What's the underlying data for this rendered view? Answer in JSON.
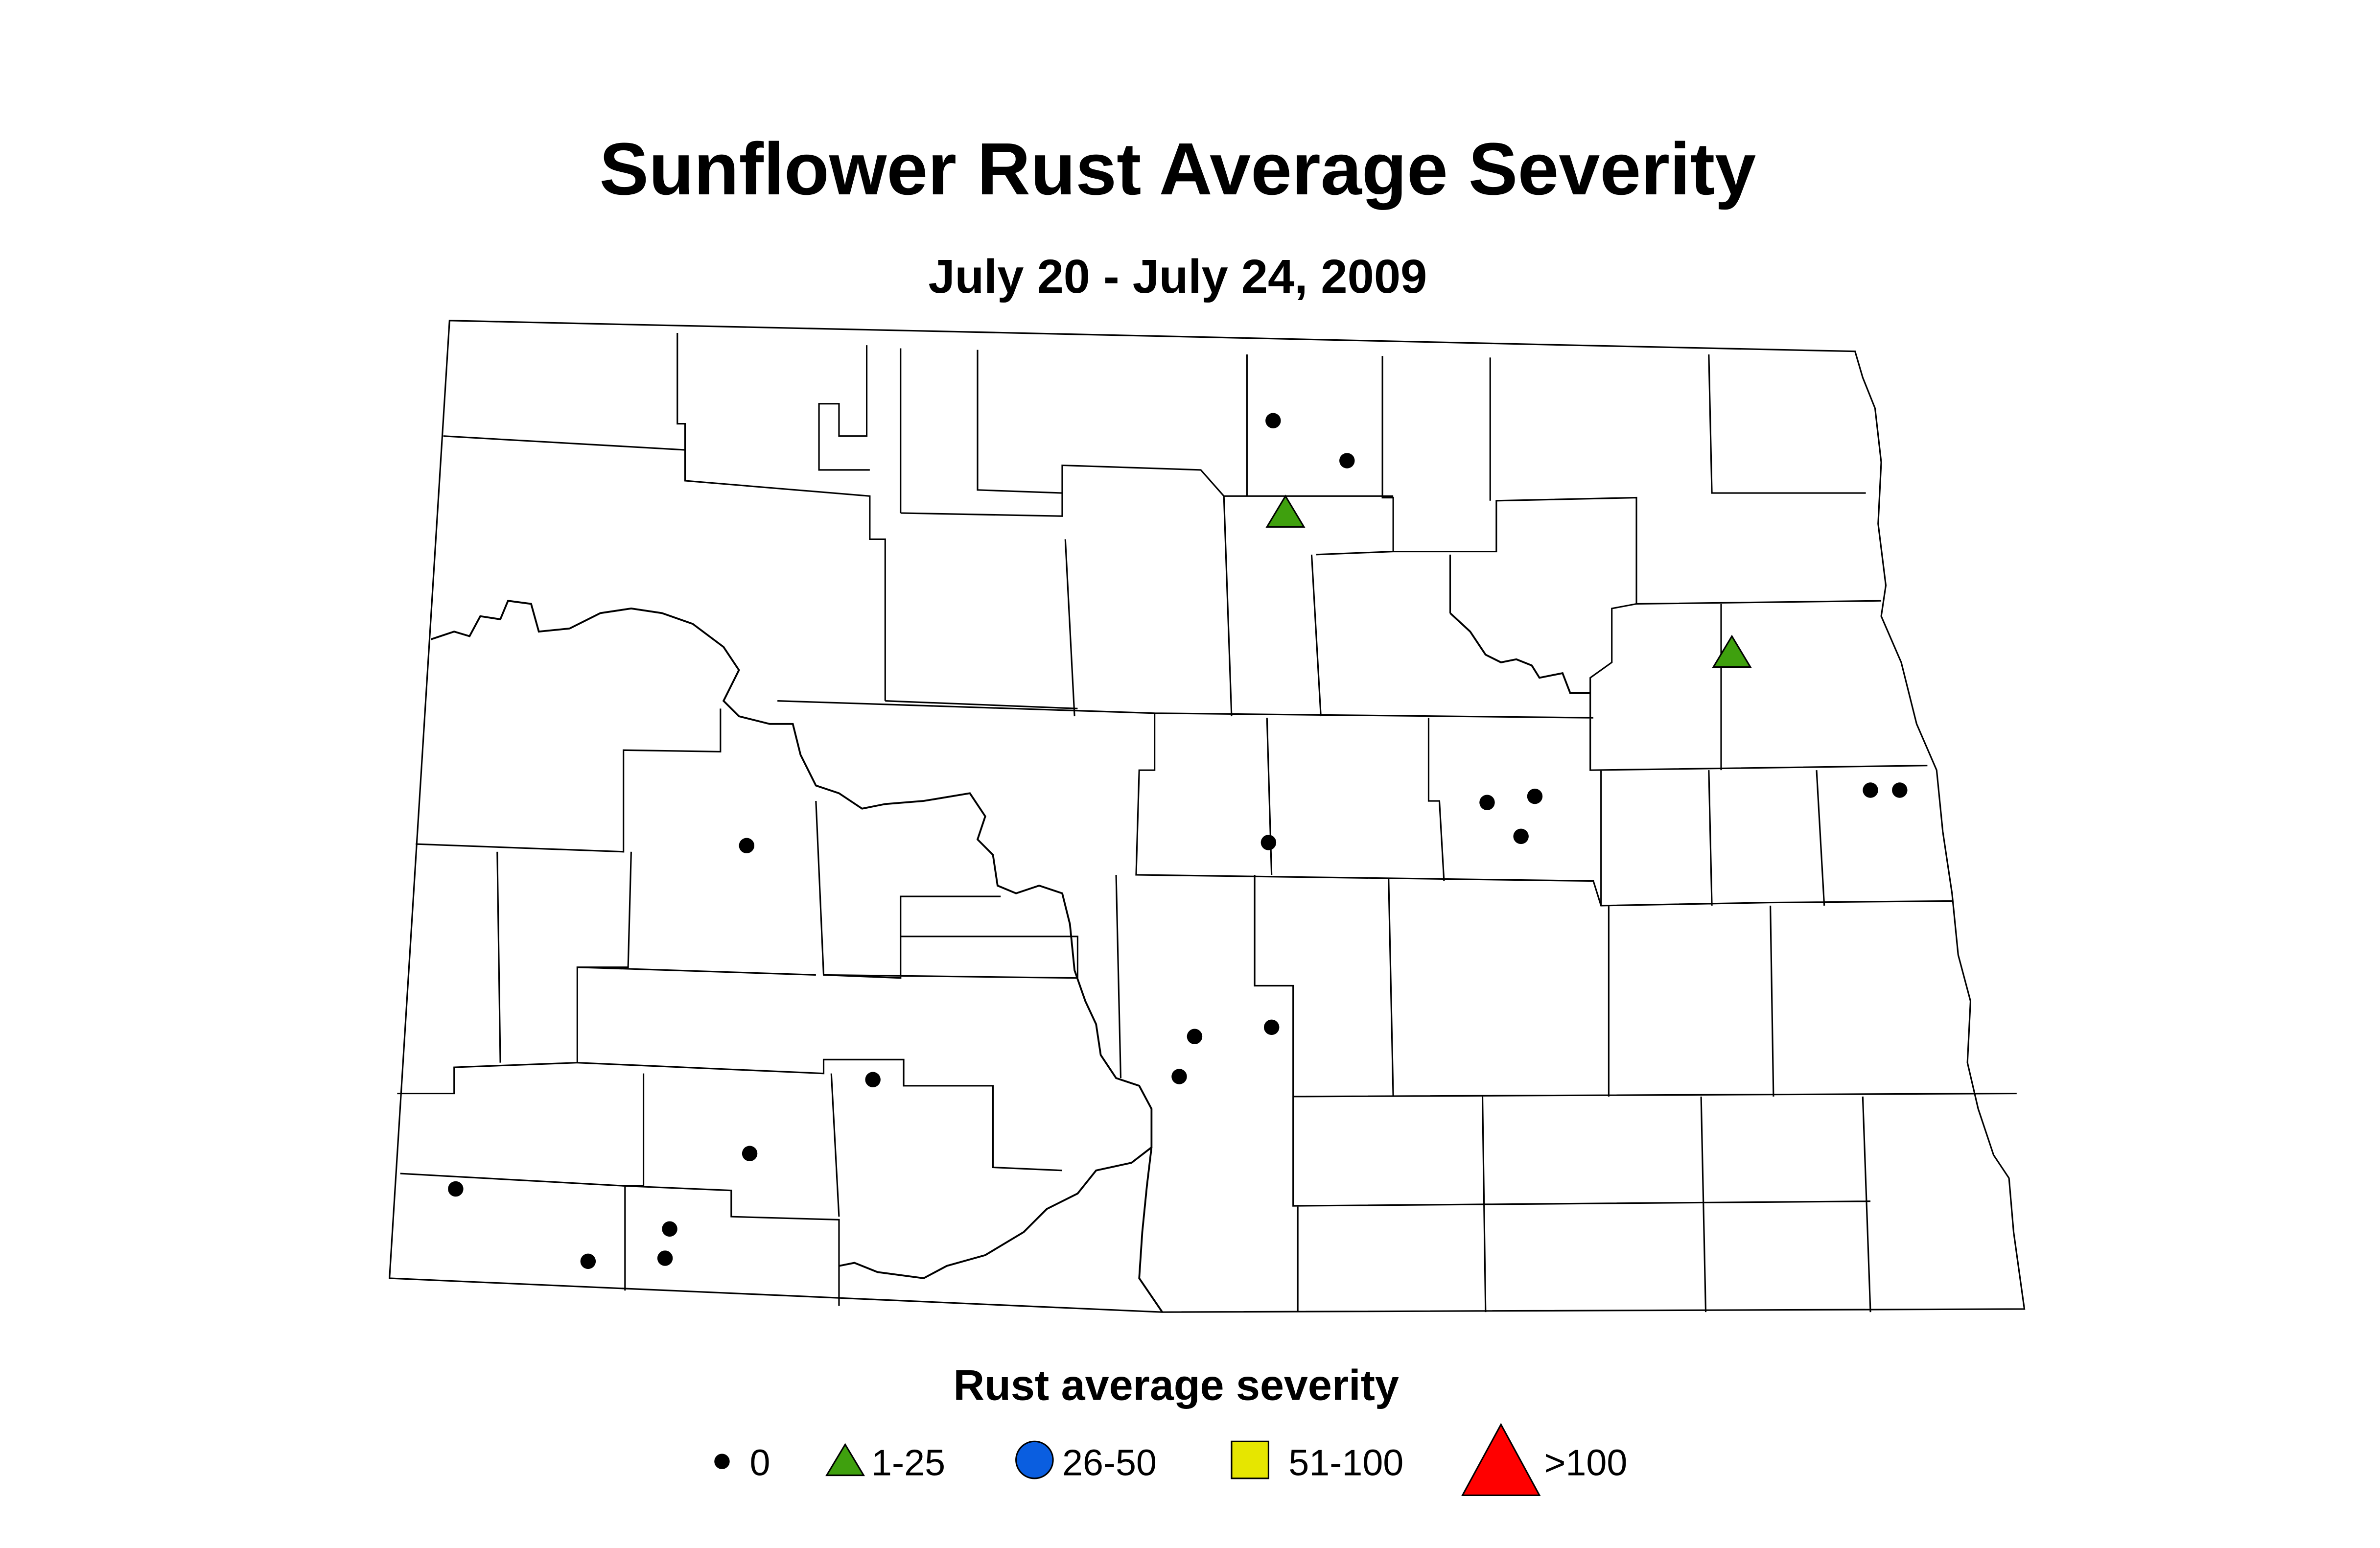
{
  "title": "Sunflower Rust Average Severity",
  "subtitle": "July 20 - July 24, 2009",
  "legend": {
    "title": "Rust average severity",
    "items": [
      "0",
      "1-25",
      "26-50",
      "51-100",
      ">100"
    ]
  }
}
